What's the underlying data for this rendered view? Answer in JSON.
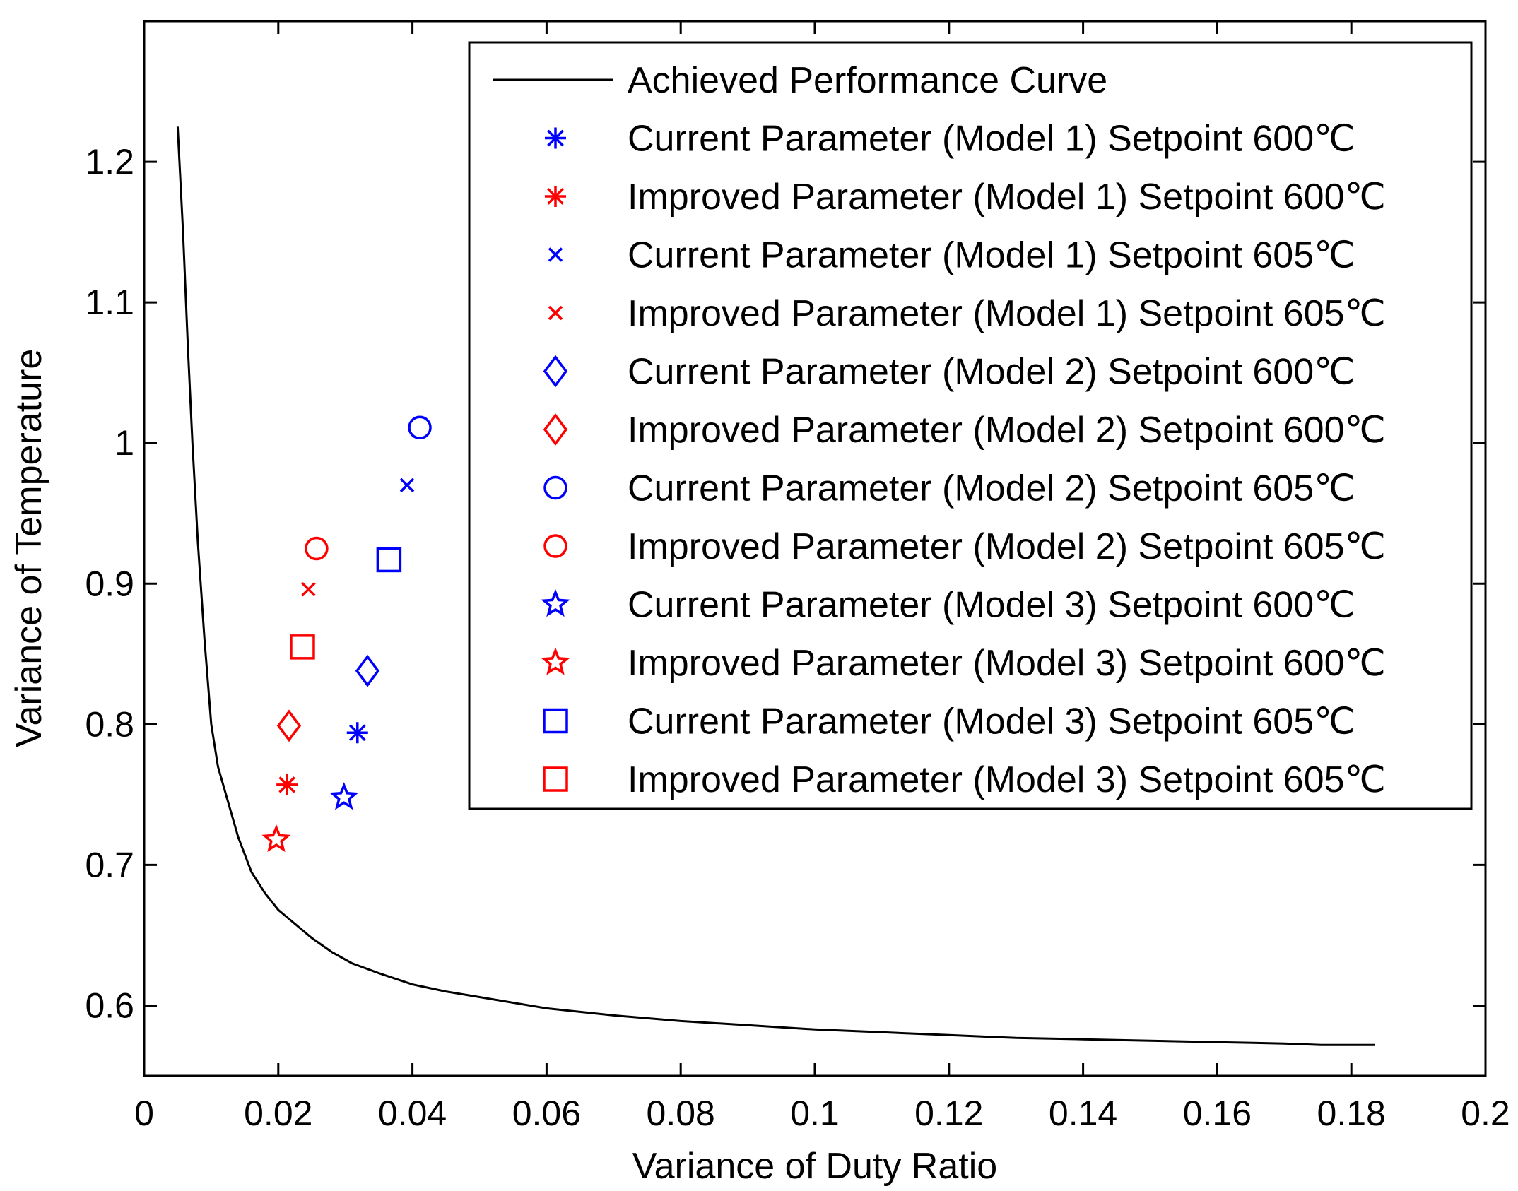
{
  "chart_data": {
    "type": "scatter",
    "title": "",
    "xlabel": "Variance of Duty Ratio",
    "ylabel": "Variance of Temperature",
    "xlim": [
      0,
      0.2
    ],
    "ylim": [
      0.55,
      1.3
    ],
    "xticks": [
      0,
      0.02,
      0.04,
      0.06,
      0.08,
      0.1,
      0.12,
      0.14,
      0.16,
      0.18,
      0.2
    ],
    "xtick_labels": [
      "0",
      "0.02",
      "0.04",
      "0.06",
      "0.08",
      "0.1",
      "0.12",
      "0.14",
      "0.16",
      "0.18",
      "0.2"
    ],
    "yticks": [
      0.6,
      0.7,
      0.8,
      0.9,
      1.0,
      1.1,
      1.2
    ],
    "ytick_labels": [
      "0.6",
      "0.7",
      "0.8",
      "0.9",
      "1",
      "1.1",
      "1.2"
    ],
    "grid": false,
    "legend_position": "top-right",
    "curve": {
      "name": "Achieved Performance Curve",
      "color": "#000000",
      "x": [
        0.005,
        0.0058,
        0.0065,
        0.0072,
        0.008,
        0.009,
        0.01,
        0.011,
        0.0125,
        0.014,
        0.016,
        0.018,
        0.02,
        0.022,
        0.025,
        0.028,
        0.031,
        0.035,
        0.04,
        0.045,
        0.05,
        0.06,
        0.07,
        0.08,
        0.09,
        0.1,
        0.11,
        0.12,
        0.13,
        0.14,
        0.15,
        0.16,
        0.17,
        0.1755,
        0.1835
      ],
      "y": [
        1.225,
        1.15,
        1.07,
        1.0,
        0.93,
        0.86,
        0.8,
        0.77,
        0.745,
        0.72,
        0.695,
        0.68,
        0.668,
        0.66,
        0.648,
        0.638,
        0.63,
        0.623,
        0.615,
        0.61,
        0.606,
        0.598,
        0.593,
        0.589,
        0.586,
        0.583,
        0.581,
        0.579,
        0.577,
        0.576,
        0.575,
        0.574,
        0.573,
        0.572,
        0.572
      ]
    },
    "series": [
      {
        "name": "Current Parameter (Model 1) Setpoint 600℃",
        "marker": "asterisk",
        "color": "#0000ff",
        "x": [
          0.0318
        ],
        "y": [
          0.794
        ]
      },
      {
        "name": "Improved Parameter (Model 1) Setpoint 600℃",
        "marker": "asterisk",
        "color": "#ff0000",
        "x": [
          0.0213
        ],
        "y": [
          0.757
        ]
      },
      {
        "name": "Current Parameter (Model 1) Setpoint 605℃",
        "marker": "x",
        "color": "#0000ff",
        "x": [
          0.0392
        ],
        "y": [
          0.97
        ]
      },
      {
        "name": "Improved Parameter (Model 1) Setpoint 605℃",
        "marker": "x",
        "color": "#ff0000",
        "x": [
          0.0245
        ],
        "y": [
          0.896
        ]
      },
      {
        "name": "Current Parameter (Model 2) Setpoint 600℃",
        "marker": "diamond",
        "color": "#0000ff",
        "x": [
          0.0333
        ],
        "y": [
          0.838
        ]
      },
      {
        "name": "Improved Parameter (Model 2) Setpoint 600℃",
        "marker": "diamond",
        "color": "#ff0000",
        "x": [
          0.0216
        ],
        "y": [
          0.799
        ]
      },
      {
        "name": "Current Parameter (Model 2) Setpoint 605℃",
        "marker": "circle",
        "color": "#0000ff",
        "x": [
          0.0411
        ],
        "y": [
          1.011
        ]
      },
      {
        "name": "Improved Parameter (Model 2) Setpoint 605℃",
        "marker": "circle",
        "color": "#ff0000",
        "x": [
          0.0257
        ],
        "y": [
          0.925
        ]
      },
      {
        "name": "Current Parameter (Model 3) Setpoint 600℃",
        "marker": "pentagram",
        "color": "#0000ff",
        "x": [
          0.0298
        ],
        "y": [
          0.748
        ]
      },
      {
        "name": "Improved Parameter (Model 3) Setpoint 600℃",
        "marker": "pentagram",
        "color": "#ff0000",
        "x": [
          0.0197
        ],
        "y": [
          0.718
        ]
      },
      {
        "name": "Current Parameter (Model 3) Setpoint 605℃",
        "marker": "square",
        "color": "#0000ff",
        "x": [
          0.0365
        ],
        "y": [
          0.917
        ]
      },
      {
        "name": "Improved Parameter (Model 3) Setpoint 605℃",
        "marker": "square",
        "color": "#ff0000",
        "x": [
          0.0236
        ],
        "y": [
          0.855
        ]
      }
    ]
  }
}
